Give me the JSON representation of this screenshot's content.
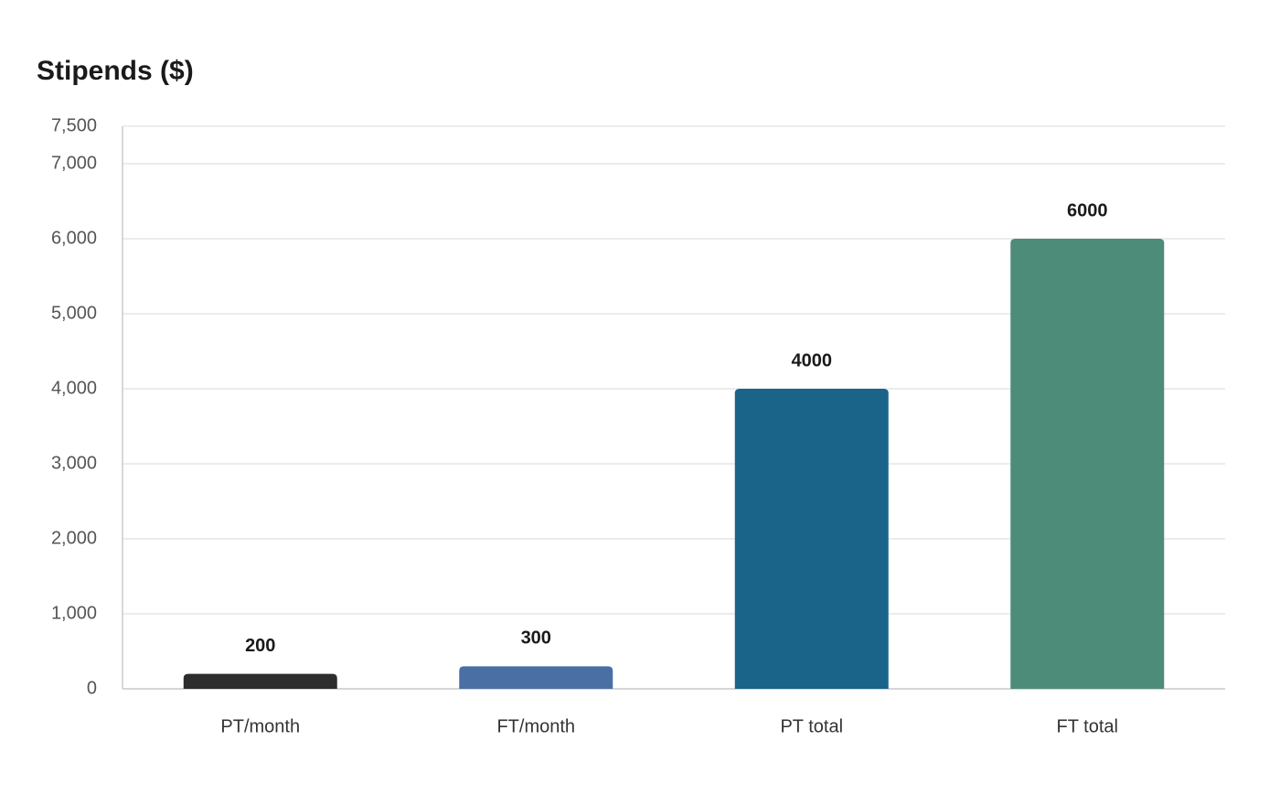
{
  "chart_data": {
    "type": "bar",
    "title": "Stipends ($)",
    "categories": [
      "PT/month",
      "FT/month",
      "PT total",
      "FT total"
    ],
    "values": [
      200,
      300,
      4000,
      6000
    ],
    "colors": [
      "#2d2d2d",
      "#4a6fa5",
      "#1a6389",
      "#4e8c7a"
    ],
    "ylim": [
      0,
      7500
    ],
    "yticks": [
      0,
      {
        "value": 1000,
        "label": "1,000"
      },
      {
        "value": 2000,
        "label": "2,000"
      },
      {
        "value": 3000,
        "label": "3,000"
      },
      {
        "value": 4000,
        "label": "4,000"
      },
      {
        "value": 5000,
        "label": "5,000"
      },
      {
        "value": 6000,
        "label": "6,000"
      },
      {
        "value": 7000,
        "label": "7,000"
      },
      {
        "value": 7500,
        "label": "7,500"
      }
    ],
    "grid": true
  }
}
